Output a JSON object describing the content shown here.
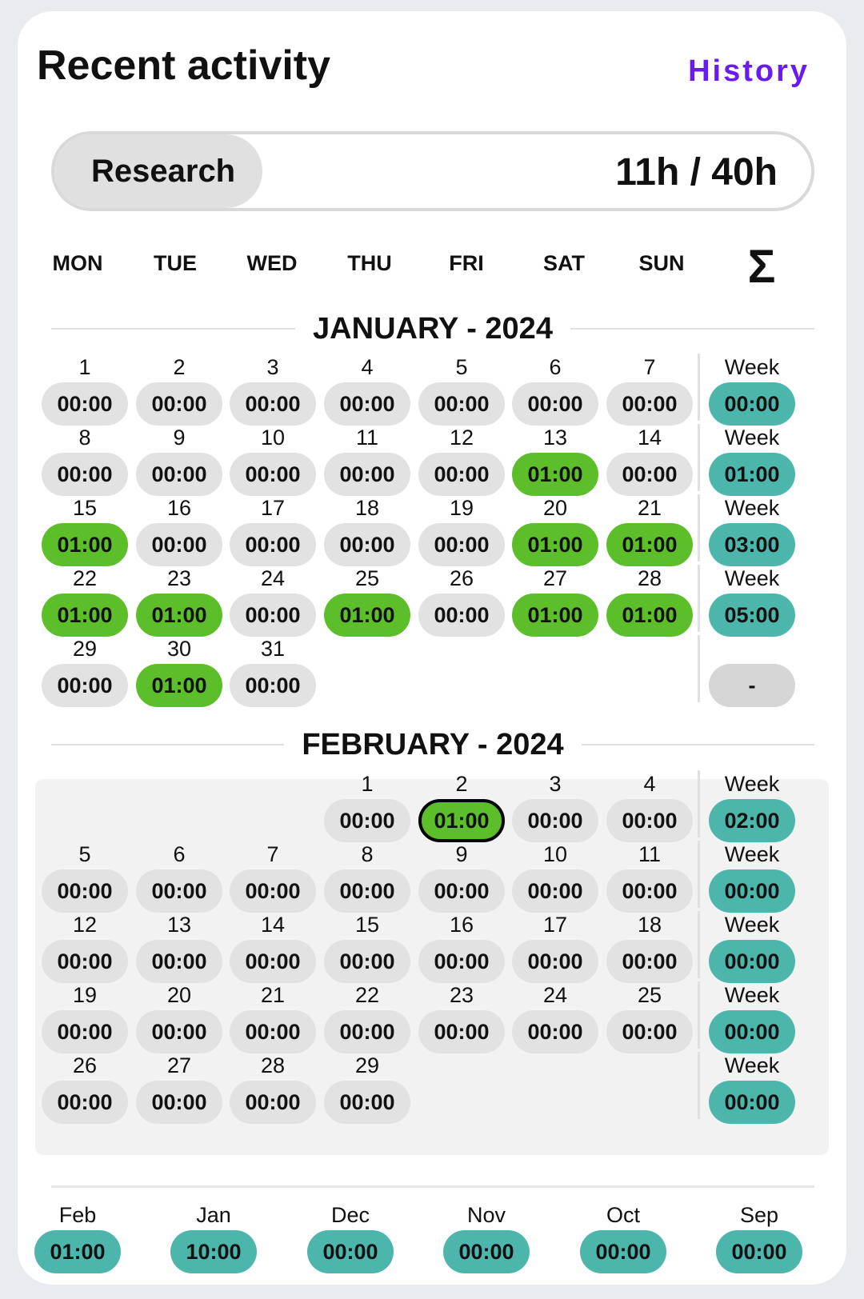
{
  "header": {
    "title": "Recent activity",
    "history_label": "History"
  },
  "progress": {
    "name": "Research",
    "total": "11h / 40h",
    "fraction": 0.275
  },
  "weekdays": [
    "MON",
    "TUE",
    "WED",
    "THU",
    "FRI",
    "SAT",
    "SUN"
  ],
  "sigma": "Σ",
  "months": [
    {
      "label": "JANUARY - 2024",
      "rows": [
        {
          "days": [
            [
              "1",
              "00:00"
            ],
            [
              "2",
              "00:00"
            ],
            [
              "3",
              "00:00"
            ],
            [
              "4",
              "00:00"
            ],
            [
              "5",
              "00:00"
            ],
            [
              "6",
              "00:00"
            ],
            [
              "7",
              "00:00"
            ]
          ],
          "week_label": "Week",
          "week_total": "00:00"
        },
        {
          "days": [
            [
              "8",
              "00:00"
            ],
            [
              "9",
              "00:00"
            ],
            [
              "10",
              "00:00"
            ],
            [
              "11",
              "00:00"
            ],
            [
              "12",
              "00:00"
            ],
            [
              "13",
              "01:00"
            ],
            [
              "14",
              "00:00"
            ]
          ],
          "week_label": "Week",
          "week_total": "01:00"
        },
        {
          "days": [
            [
              "15",
              "01:00"
            ],
            [
              "16",
              "00:00"
            ],
            [
              "17",
              "00:00"
            ],
            [
              "18",
              "00:00"
            ],
            [
              "19",
              "00:00"
            ],
            [
              "20",
              "01:00"
            ],
            [
              "21",
              "01:00"
            ]
          ],
          "week_label": "Week",
          "week_total": "03:00"
        },
        {
          "days": [
            [
              "22",
              "01:00"
            ],
            [
              "23",
              "01:00"
            ],
            [
              "24",
              "00:00"
            ],
            [
              "25",
              "01:00"
            ],
            [
              "26",
              "00:00"
            ],
            [
              "27",
              "01:00"
            ],
            [
              "28",
              "01:00"
            ]
          ],
          "week_label": "Week",
          "week_total": "05:00"
        },
        {
          "days": [
            [
              "29",
              "00:00"
            ],
            [
              "30",
              "01:00"
            ],
            [
              "31",
              "00:00"
            ],
            null,
            null,
            null,
            null
          ],
          "week_label": "",
          "week_total": "-"
        }
      ]
    },
    {
      "label": "FEBRUARY - 2024",
      "rows": [
        {
          "days": [
            null,
            null,
            null,
            [
              "1",
              "00:00"
            ],
            [
              "2",
              "01:00"
            ],
            [
              "3",
              "00:00"
            ],
            [
              "4",
              "00:00"
            ]
          ],
          "week_label": "Week",
          "week_total": "02:00"
        },
        {
          "days": [
            [
              "5",
              "00:00"
            ],
            [
              "6",
              "00:00"
            ],
            [
              "7",
              "00:00"
            ],
            [
              "8",
              "00:00"
            ],
            [
              "9",
              "00:00"
            ],
            [
              "10",
              "00:00"
            ],
            [
              "11",
              "00:00"
            ]
          ],
          "week_label": "Week",
          "week_total": "00:00"
        },
        {
          "days": [
            [
              "12",
              "00:00"
            ],
            [
              "13",
              "00:00"
            ],
            [
              "14",
              "00:00"
            ],
            [
              "15",
              "00:00"
            ],
            [
              "16",
              "00:00"
            ],
            [
              "17",
              "00:00"
            ],
            [
              "18",
              "00:00"
            ]
          ],
          "week_label": "Week",
          "week_total": "00:00"
        },
        {
          "days": [
            [
              "19",
              "00:00"
            ],
            [
              "20",
              "00:00"
            ],
            [
              "21",
              "00:00"
            ],
            [
              "22",
              "00:00"
            ],
            [
              "23",
              "00:00"
            ],
            [
              "24",
              "00:00"
            ],
            [
              "25",
              "00:00"
            ]
          ],
          "week_label": "Week",
          "week_total": "00:00"
        },
        {
          "days": [
            [
              "26",
              "00:00"
            ],
            [
              "27",
              "00:00"
            ],
            [
              "28",
              "00:00"
            ],
            [
              "29",
              "00:00"
            ],
            null,
            null,
            null
          ],
          "week_label": "Week",
          "week_total": "00:00"
        }
      ]
    }
  ],
  "selected_day": "February 2",
  "monthly_totals": [
    {
      "month": "Feb",
      "total": "01:00"
    },
    {
      "month": "Jan",
      "total": "10:00"
    },
    {
      "month": "Dec",
      "total": "00:00"
    },
    {
      "month": "Nov",
      "total": "00:00"
    },
    {
      "month": "Oct",
      "total": "00:00"
    },
    {
      "month": "Sep",
      "total": "00:00"
    }
  ],
  "colors": {
    "accent": "#6a1bf2",
    "active_day": "#5cbf2a",
    "week_total": "#4db6ac",
    "idle_pill": "#e2e2e2"
  }
}
